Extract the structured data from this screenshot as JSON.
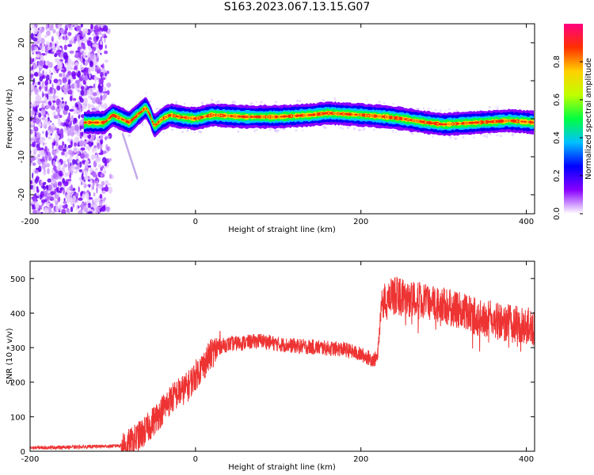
{
  "title": "S163.2023.067.13.15.G07",
  "chart_data": [
    {
      "type": "heatmap",
      "xlabel": "Height of straight line (km)",
      "ylabel": "Frequency (Hz)",
      "xlim": [
        -200,
        410
      ],
      "ylim": [
        -25,
        25
      ],
      "x_ticks": [
        "-200",
        "0",
        "200",
        "400"
      ],
      "y_ticks": [
        "-20",
        "-10",
        "0",
        "10",
        "20"
      ],
      "colorbar": {
        "label": "Normalized spectral amplitude",
        "range": [
          0.0,
          1.0
        ],
        "ticks": [
          "0.0",
          "0.2",
          "0.4",
          "0.6",
          "0.8"
        ],
        "colormap": [
          "#ffffff",
          "#8800ff",
          "#0000ff",
          "#00c0ff",
          "#00ff40",
          "#c0ff00",
          "#ffd000",
          "#ff3000",
          "#ff0080"
        ]
      },
      "ridge": {
        "x": [
          -135,
          -110,
          -100,
          -90,
          -80,
          -70,
          -60,
          -55,
          -50,
          -45,
          -40,
          -30,
          -20,
          0,
          20,
          60,
          100,
          140,
          160,
          200,
          230,
          250,
          280,
          300,
          340,
          380,
          410
        ],
        "frequency": [
          -1,
          -1,
          1,
          0,
          -1,
          1,
          3,
          1,
          -2,
          -1,
          0,
          1,
          0.5,
          0,
          1,
          0.5,
          0.5,
          1,
          1.5,
          1,
          0.5,
          0,
          -1,
          -1.5,
          -1,
          -0.5,
          -1
        ]
      },
      "noise_region_x": [
        -200,
        -100
      ]
    },
    {
      "type": "line",
      "xlabel": "Height of straight line (km)",
      "ylabel": "SNR (10 * v/v)",
      "xlim": [
        -200,
        410
      ],
      "ylim": [
        0,
        550
      ],
      "x_ticks": [
        "-200",
        "0",
        "200",
        "400"
      ],
      "y_ticks": [
        "0",
        "100",
        "200",
        "300",
        "400",
        "500"
      ],
      "color": "#ee3333",
      "series": [
        {
          "x": [
            -200,
            -150,
            -100,
            -80,
            -70,
            -60,
            -50,
            -40,
            -30,
            -20,
            -10,
            0,
            10,
            20,
            30,
            40,
            60,
            80,
            100,
            120,
            150,
            180,
            200,
            210,
            215,
            220,
            225,
            240,
            260,
            300,
            340,
            380,
            410
          ],
          "values": [
            10,
            12,
            15,
            20,
            40,
            60,
            90,
            120,
            150,
            170,
            185,
            220,
            250,
            285,
            305,
            310,
            315,
            320,
            310,
            305,
            300,
            295,
            280,
            270,
            265,
            270,
            430,
            450,
            440,
            420,
            390,
            370,
            360
          ]
        }
      ]
    }
  ]
}
